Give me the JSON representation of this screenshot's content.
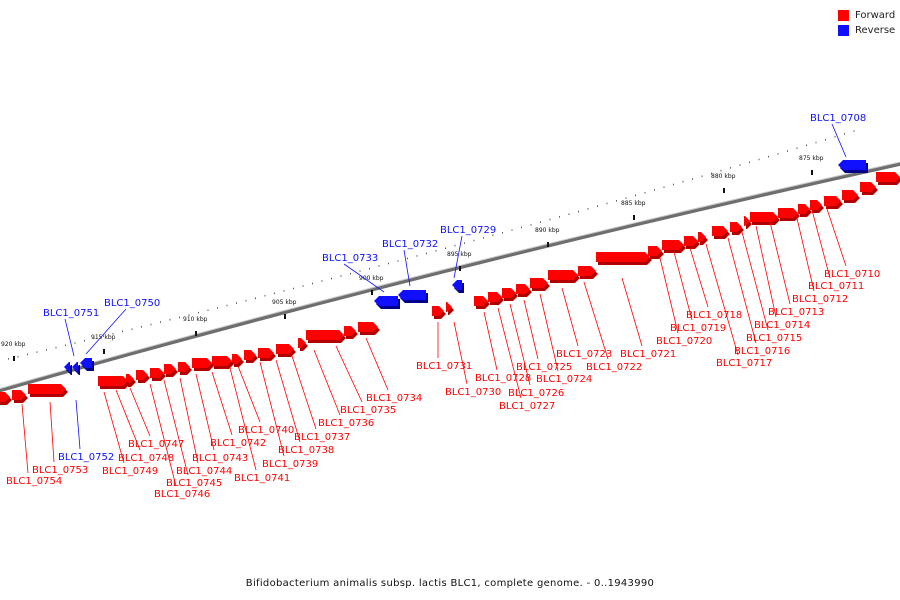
{
  "legend": {
    "forward": {
      "label": "Forward",
      "color": "#ff0000"
    },
    "reverse": {
      "label": "Reverse",
      "color": "#1010ff"
    }
  },
  "caption": "Bifidobacterium animalis subsp. lactis BLC1, complete genome. - 0..1943990",
  "ticks": [
    "875 kbp",
    "880 kbp",
    "885 kbp",
    "890 kbp",
    "895 kbp",
    "900 kbp",
    "905 kbp",
    "910 kbp",
    "915 kbp",
    "920 kbp"
  ],
  "labels": [
    "BLC1_0708",
    "BLC1_0710",
    "BLC1_0711",
    "BLC1_0712",
    "BLC1_0713",
    "BLC1_0714",
    "BLC1_0715",
    "BLC1_0716",
    "BLC1_0717",
    "BLC1_0718",
    "BLC1_0719",
    "BLC1_0720",
    "BLC1_0721",
    "BLC1_0722",
    "BLC1_0723",
    "BLC1_0724",
    "BLC1_0725",
    "BLC1_0726",
    "BLC1_0727",
    "BLC1_0728",
    "BLC1_0729",
    "BLC1_0730",
    "BLC1_0731",
    "BLC1_0732",
    "BLC1_0733",
    "BLC1_0734",
    "BLC1_0735",
    "BLC1_0736",
    "BLC1_0737",
    "BLC1_0738",
    "BLC1_0739",
    "BLC1_0740",
    "BLC1_0741",
    "BLC1_0742",
    "BLC1_0743",
    "BLC1_0744",
    "BLC1_0745",
    "BLC1_0746",
    "BLC1_0747",
    "BLC1_0748",
    "BLC1_0749",
    "BLC1_0750",
    "BLC1_0751",
    "BLC1_0752",
    "BLC1_0753",
    "BLC1_0754"
  ],
  "genes": [
    {
      "id": "BLC1_0708",
      "strand": "reverse"
    },
    {
      "id": "BLC1_0710",
      "strand": "forward"
    },
    {
      "id": "BLC1_0711",
      "strand": "forward"
    },
    {
      "id": "BLC1_0712",
      "strand": "forward"
    },
    {
      "id": "BLC1_0713",
      "strand": "forward"
    },
    {
      "id": "BLC1_0714",
      "strand": "forward"
    },
    {
      "id": "BLC1_0715",
      "strand": "forward"
    },
    {
      "id": "BLC1_0716",
      "strand": "forward"
    },
    {
      "id": "BLC1_0717",
      "strand": "forward"
    },
    {
      "id": "BLC1_0718",
      "strand": "forward"
    },
    {
      "id": "BLC1_0719",
      "strand": "forward"
    },
    {
      "id": "BLC1_0720",
      "strand": "forward"
    },
    {
      "id": "BLC1_0721",
      "strand": "forward"
    },
    {
      "id": "BLC1_0722",
      "strand": "forward"
    },
    {
      "id": "BLC1_0723",
      "strand": "forward"
    },
    {
      "id": "BLC1_0724",
      "strand": "forward"
    },
    {
      "id": "BLC1_0725",
      "strand": "forward"
    },
    {
      "id": "BLC1_0726",
      "strand": "forward"
    },
    {
      "id": "BLC1_0727",
      "strand": "forward"
    },
    {
      "id": "BLC1_0728",
      "strand": "forward"
    },
    {
      "id": "BLC1_0729",
      "strand": "reverse"
    },
    {
      "id": "BLC1_0730",
      "strand": "forward"
    },
    {
      "id": "BLC1_0731",
      "strand": "forward"
    },
    {
      "id": "BLC1_0732",
      "strand": "reverse"
    },
    {
      "id": "BLC1_0733",
      "strand": "reverse"
    },
    {
      "id": "BLC1_0734",
      "strand": "forward"
    },
    {
      "id": "BLC1_0735",
      "strand": "forward"
    },
    {
      "id": "BLC1_0736",
      "strand": "forward"
    },
    {
      "id": "BLC1_0737",
      "strand": "forward"
    },
    {
      "id": "BLC1_0738",
      "strand": "forward"
    },
    {
      "id": "BLC1_0739",
      "strand": "forward"
    },
    {
      "id": "BLC1_0740",
      "strand": "forward"
    },
    {
      "id": "BLC1_0741",
      "strand": "forward"
    },
    {
      "id": "BLC1_0742",
      "strand": "forward"
    },
    {
      "id": "BLC1_0743",
      "strand": "forward"
    },
    {
      "id": "BLC1_0744",
      "strand": "forward"
    },
    {
      "id": "BLC1_0745",
      "strand": "forward"
    },
    {
      "id": "BLC1_0746",
      "strand": "forward"
    },
    {
      "id": "BLC1_0747",
      "strand": "forward"
    },
    {
      "id": "BLC1_0748",
      "strand": "forward"
    },
    {
      "id": "BLC1_0749",
      "strand": "forward"
    },
    {
      "id": "BLC1_0750",
      "strand": "reverse"
    },
    {
      "id": "BLC1_0751",
      "strand": "reverse"
    },
    {
      "id": "BLC1_0752",
      "strand": "reverse"
    },
    {
      "id": "BLC1_0753",
      "strand": "forward"
    },
    {
      "id": "BLC1_0754",
      "strand": "forward"
    }
  ]
}
